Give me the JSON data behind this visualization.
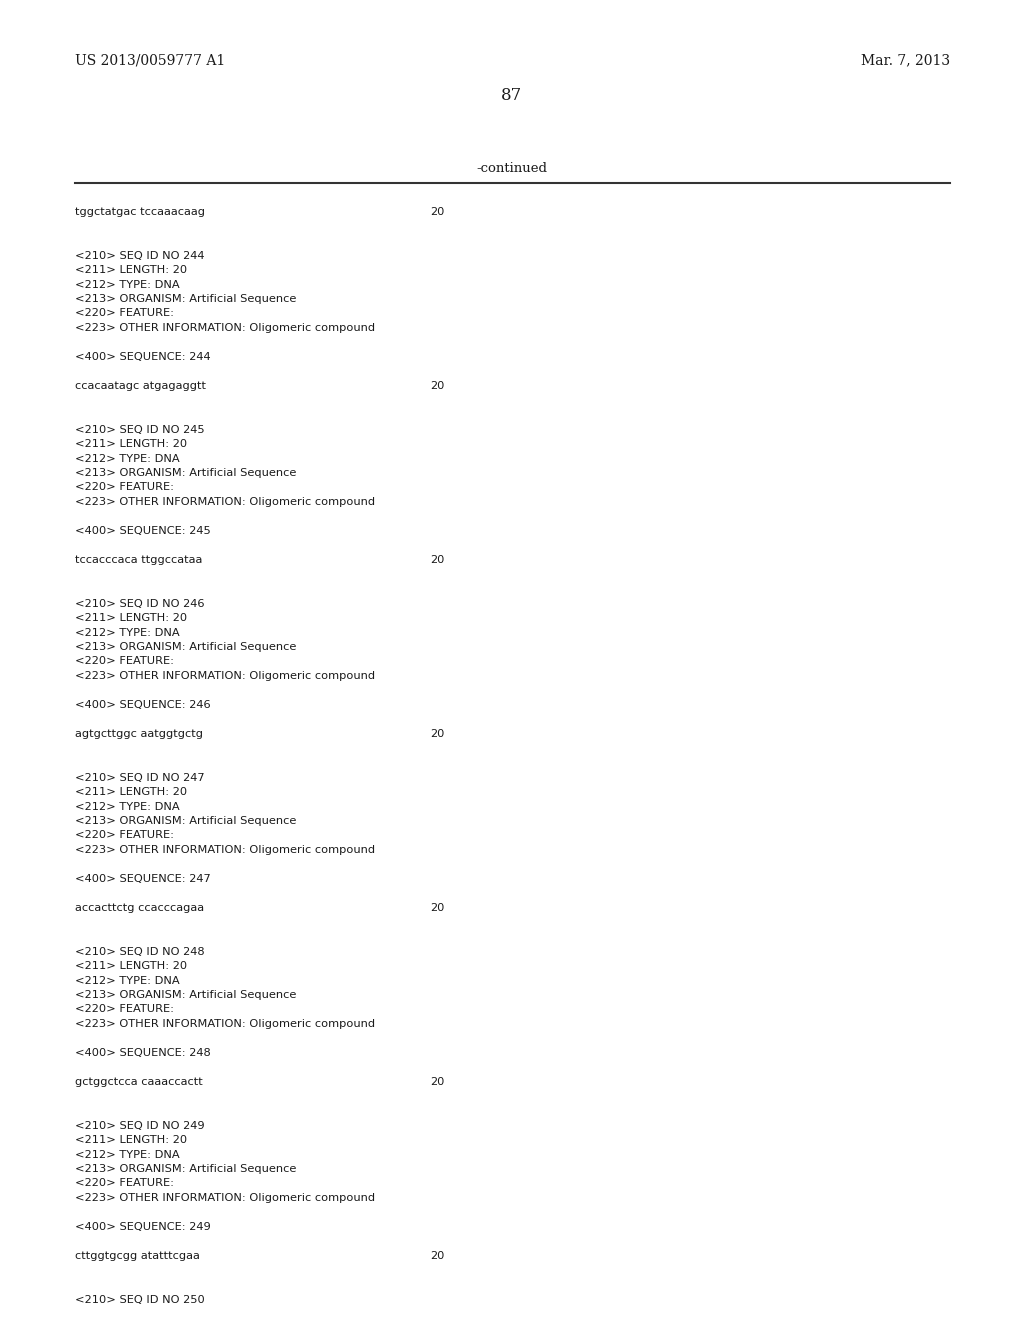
{
  "background_color": "#ffffff",
  "header_left": "US 2013/0059777 A1",
  "header_right": "Mar. 7, 2013",
  "page_number": "87",
  "continued_label": "-continued",
  "monospace_font": "Courier New",
  "serif_font": "serif",
  "content_lines": [
    {
      "text": "tggctatgac tccaaacaag",
      "tab": "20",
      "type": "seq"
    },
    {
      "text": "",
      "type": "blank"
    },
    {
      "text": "",
      "type": "blank"
    },
    {
      "text": "<210> SEQ ID NO 244",
      "type": "meta"
    },
    {
      "text": "<211> LENGTH: 20",
      "type": "meta"
    },
    {
      "text": "<212> TYPE: DNA",
      "type": "meta"
    },
    {
      "text": "<213> ORGANISM: Artificial Sequence",
      "type": "meta"
    },
    {
      "text": "<220> FEATURE:",
      "type": "meta"
    },
    {
      "text": "<223> OTHER INFORMATION: Oligomeric compound",
      "type": "meta"
    },
    {
      "text": "",
      "type": "blank"
    },
    {
      "text": "<400> SEQUENCE: 244",
      "type": "meta"
    },
    {
      "text": "",
      "type": "blank"
    },
    {
      "text": "ccacaatagc atgagaggtt",
      "tab": "20",
      "type": "seq"
    },
    {
      "text": "",
      "type": "blank"
    },
    {
      "text": "",
      "type": "blank"
    },
    {
      "text": "<210> SEQ ID NO 245",
      "type": "meta"
    },
    {
      "text": "<211> LENGTH: 20",
      "type": "meta"
    },
    {
      "text": "<212> TYPE: DNA",
      "type": "meta"
    },
    {
      "text": "<213> ORGANISM: Artificial Sequence",
      "type": "meta"
    },
    {
      "text": "<220> FEATURE:",
      "type": "meta"
    },
    {
      "text": "<223> OTHER INFORMATION: Oligomeric compound",
      "type": "meta"
    },
    {
      "text": "",
      "type": "blank"
    },
    {
      "text": "<400> SEQUENCE: 245",
      "type": "meta"
    },
    {
      "text": "",
      "type": "blank"
    },
    {
      "text": "tccacccaca ttggccataa",
      "tab": "20",
      "type": "seq"
    },
    {
      "text": "",
      "type": "blank"
    },
    {
      "text": "",
      "type": "blank"
    },
    {
      "text": "<210> SEQ ID NO 246",
      "type": "meta"
    },
    {
      "text": "<211> LENGTH: 20",
      "type": "meta"
    },
    {
      "text": "<212> TYPE: DNA",
      "type": "meta"
    },
    {
      "text": "<213> ORGANISM: Artificial Sequence",
      "type": "meta"
    },
    {
      "text": "<220> FEATURE:",
      "type": "meta"
    },
    {
      "text": "<223> OTHER INFORMATION: Oligomeric compound",
      "type": "meta"
    },
    {
      "text": "",
      "type": "blank"
    },
    {
      "text": "<400> SEQUENCE: 246",
      "type": "meta"
    },
    {
      "text": "",
      "type": "blank"
    },
    {
      "text": "agtgcttggc aatggtgctg",
      "tab": "20",
      "type": "seq"
    },
    {
      "text": "",
      "type": "blank"
    },
    {
      "text": "",
      "type": "blank"
    },
    {
      "text": "<210> SEQ ID NO 247",
      "type": "meta"
    },
    {
      "text": "<211> LENGTH: 20",
      "type": "meta"
    },
    {
      "text": "<212> TYPE: DNA",
      "type": "meta"
    },
    {
      "text": "<213> ORGANISM: Artificial Sequence",
      "type": "meta"
    },
    {
      "text": "<220> FEATURE:",
      "type": "meta"
    },
    {
      "text": "<223> OTHER INFORMATION: Oligomeric compound",
      "type": "meta"
    },
    {
      "text": "",
      "type": "blank"
    },
    {
      "text": "<400> SEQUENCE: 247",
      "type": "meta"
    },
    {
      "text": "",
      "type": "blank"
    },
    {
      "text": "accacttctg ccacccagaa",
      "tab": "20",
      "type": "seq"
    },
    {
      "text": "",
      "type": "blank"
    },
    {
      "text": "",
      "type": "blank"
    },
    {
      "text": "<210> SEQ ID NO 248",
      "type": "meta"
    },
    {
      "text": "<211> LENGTH: 20",
      "type": "meta"
    },
    {
      "text": "<212> TYPE: DNA",
      "type": "meta"
    },
    {
      "text": "<213> ORGANISM: Artificial Sequence",
      "type": "meta"
    },
    {
      "text": "<220> FEATURE:",
      "type": "meta"
    },
    {
      "text": "<223> OTHER INFORMATION: Oligomeric compound",
      "type": "meta"
    },
    {
      "text": "",
      "type": "blank"
    },
    {
      "text": "<400> SEQUENCE: 248",
      "type": "meta"
    },
    {
      "text": "",
      "type": "blank"
    },
    {
      "text": "gctggctcca caaaccactt",
      "tab": "20",
      "type": "seq"
    },
    {
      "text": "",
      "type": "blank"
    },
    {
      "text": "",
      "type": "blank"
    },
    {
      "text": "<210> SEQ ID NO 249",
      "type": "meta"
    },
    {
      "text": "<211> LENGTH: 20",
      "type": "meta"
    },
    {
      "text": "<212> TYPE: DNA",
      "type": "meta"
    },
    {
      "text": "<213> ORGANISM: Artificial Sequence",
      "type": "meta"
    },
    {
      "text": "<220> FEATURE:",
      "type": "meta"
    },
    {
      "text": "<223> OTHER INFORMATION: Oligomeric compound",
      "type": "meta"
    },
    {
      "text": "",
      "type": "blank"
    },
    {
      "text": "<400> SEQUENCE: 249",
      "type": "meta"
    },
    {
      "text": "",
      "type": "blank"
    },
    {
      "text": "cttggtgcgg atatttcgaa",
      "tab": "20",
      "type": "seq"
    },
    {
      "text": "",
      "type": "blank"
    },
    {
      "text": "",
      "type": "blank"
    },
    {
      "text": "<210> SEQ ID NO 250",
      "type": "meta"
    }
  ]
}
